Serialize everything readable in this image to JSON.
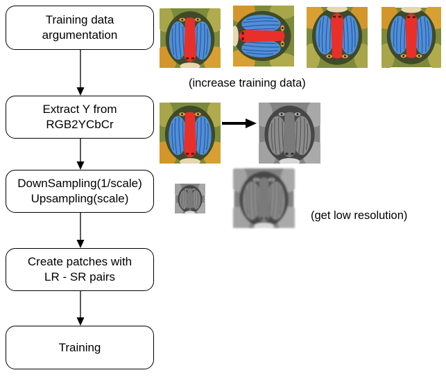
{
  "boxes": [
    {
      "lines": [
        "Training data",
        "argumentation"
      ]
    },
    {
      "lines": [
        "Extract Y from",
        "RGB2YCbCr"
      ]
    },
    {
      "lines": [
        "DownSampling(1/scale)",
        "Upsampling(scale)"
      ]
    },
    {
      "lines": [
        "Create patches with",
        "LR - SR pairs"
      ]
    },
    {
      "lines": [
        "Training"
      ]
    }
  ],
  "annotations": {
    "increase": "(increase training data)",
    "low_res": "(get low resolution)"
  },
  "palette": {
    "stroke": "#000000",
    "fur": "#7d8a3a",
    "cheek": "#4f8fd8",
    "nose": "#e8302a"
  }
}
